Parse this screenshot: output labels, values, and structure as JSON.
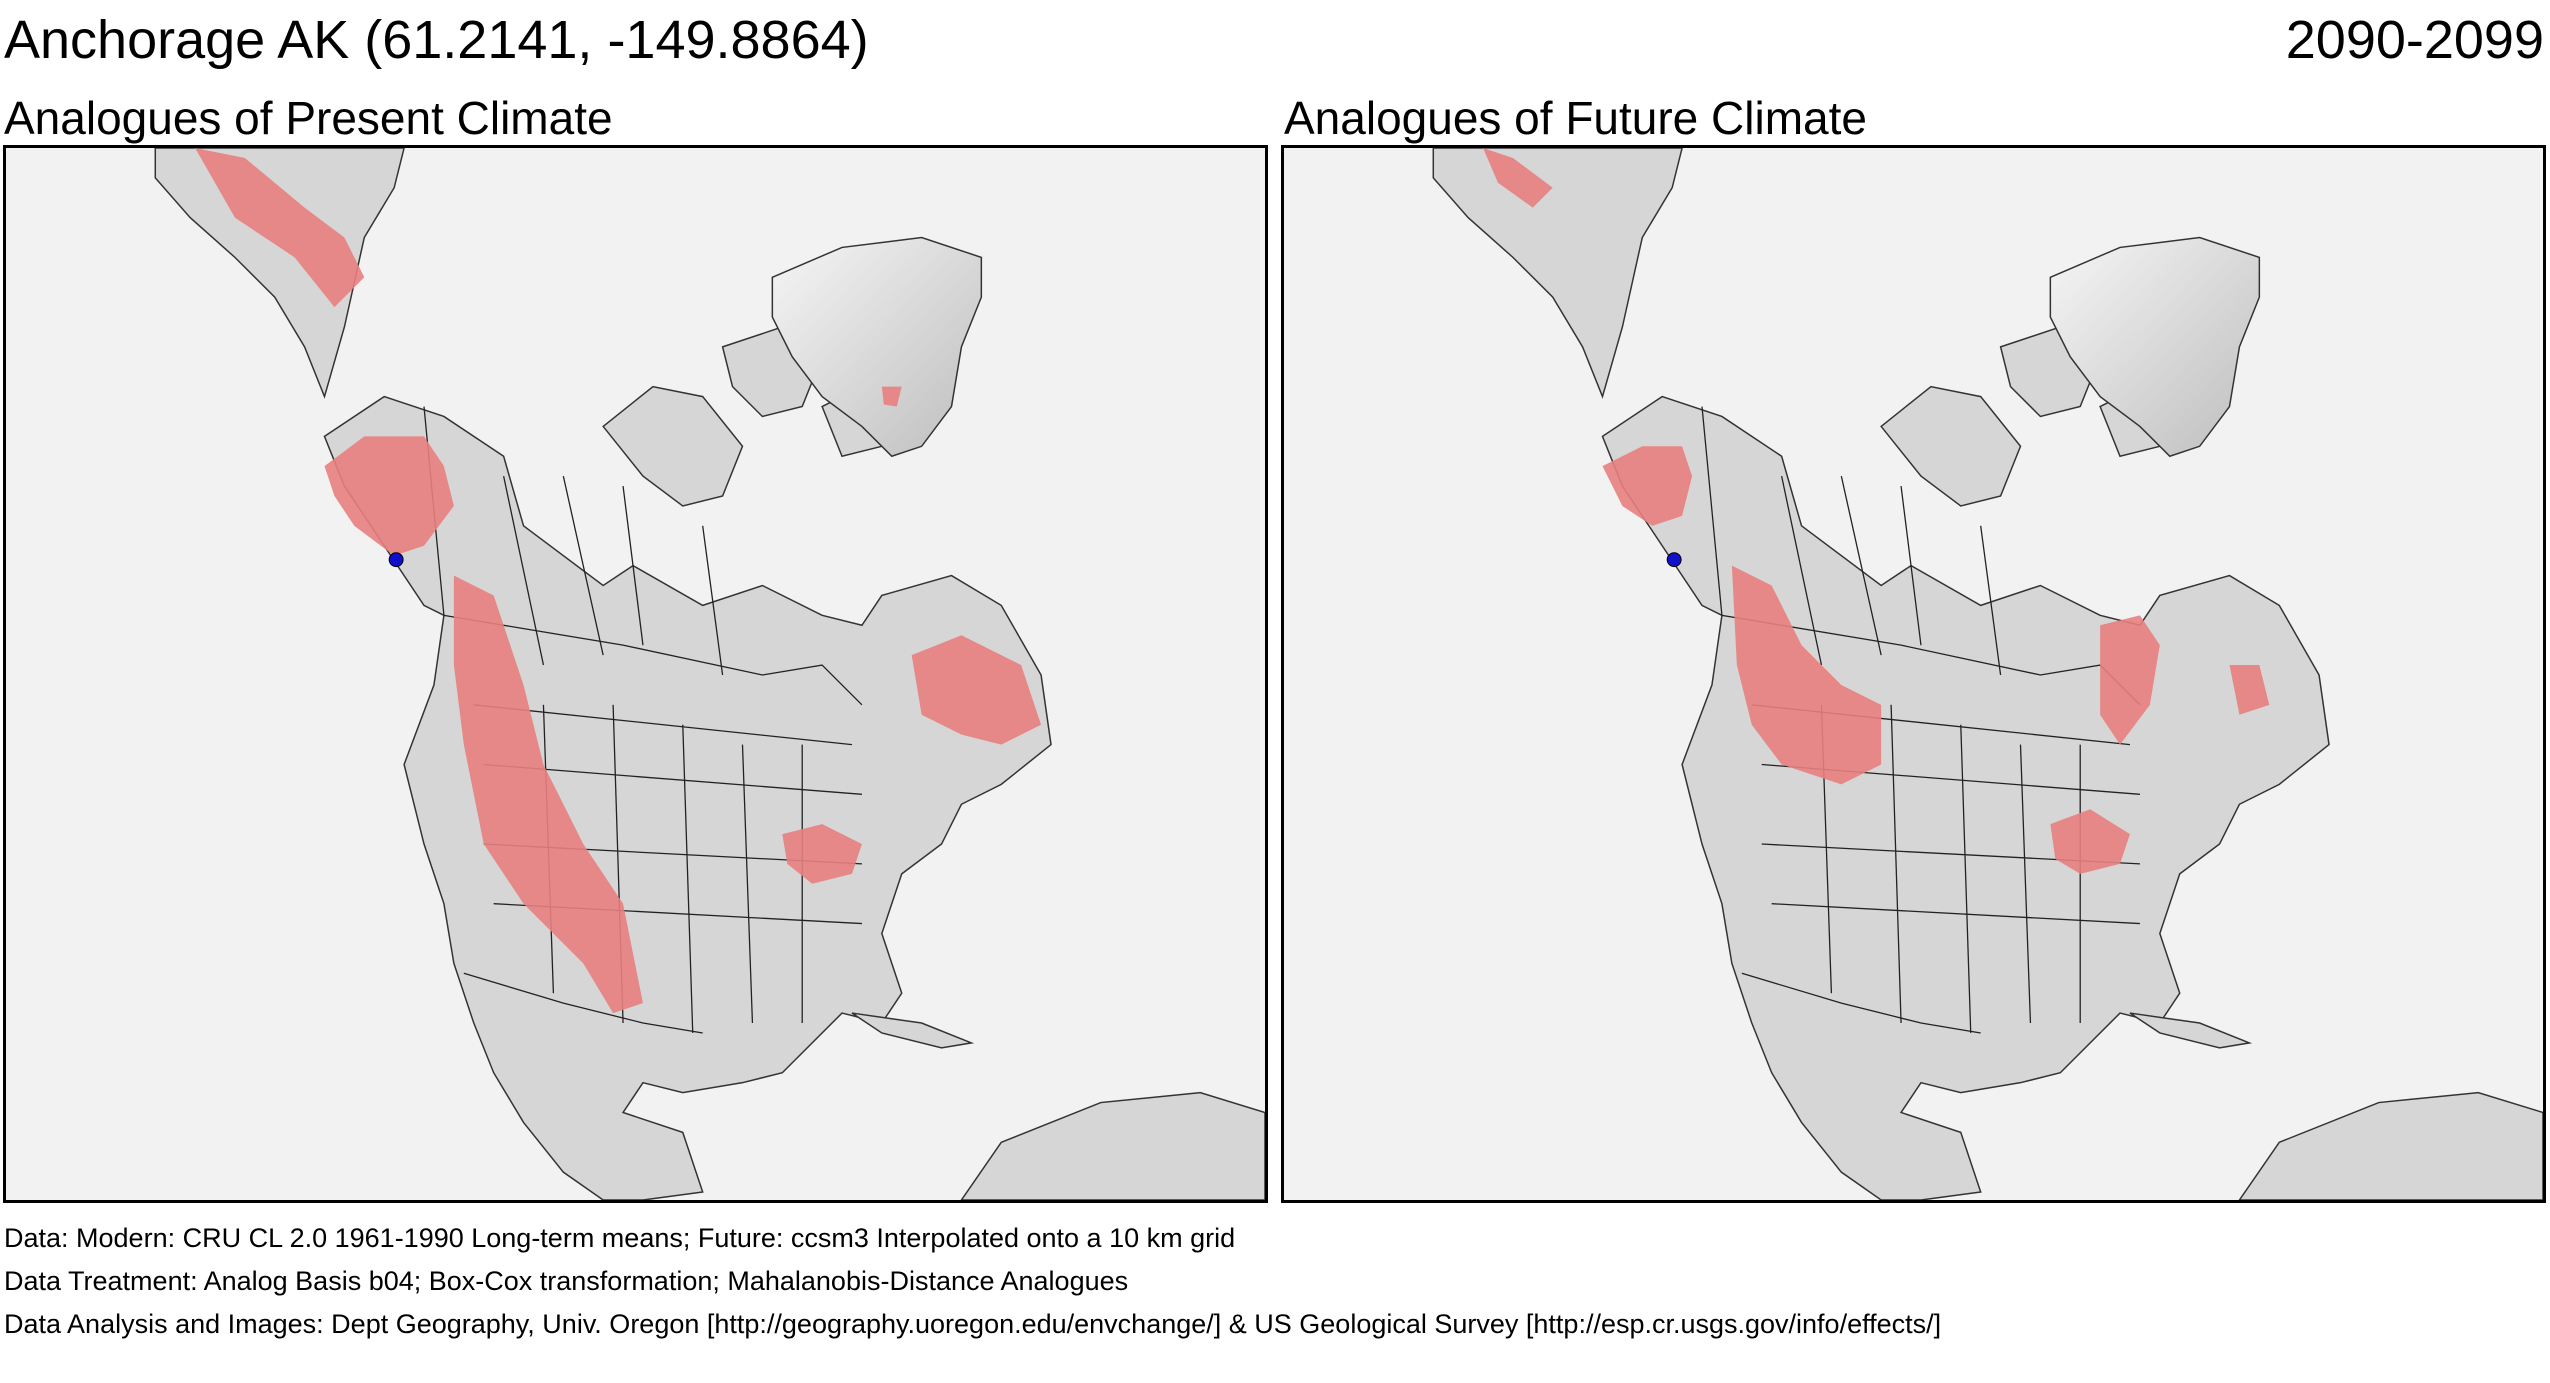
{
  "header": {
    "location_title": "Anchorage AK  (61.2141, -149.8864)",
    "period": "2090-2099"
  },
  "panels": [
    {
      "id": "present",
      "title": "Analogues of Present Climate"
    },
    {
      "id": "future",
      "title": "Analogues of Future Climate"
    }
  ],
  "colors": {
    "land": "#d6d6d6",
    "ocean": "#f2f2f2",
    "analogue": "#e88080",
    "boundary": "#222222",
    "site_marker": "#1010cc"
  },
  "site_marker": {
    "name": "Anchorage AK",
    "lat": 61.2141,
    "lon": -149.8864
  },
  "footer": {
    "data": "Data:  Modern: CRU CL 2.0 1961-1990 Long-term means; Future: ccsm3 Interpolated onto a 10 km grid",
    "treatment": "Data Treatment:  Analog Basis b04; Box-Cox transformation; Mahalanobis-Distance Analogues",
    "analysis": "Data Analysis and Images:  Dept Geography, Univ. Oregon [http://geography.uoregon.edu/envchange/] & US Geological Survey [http://esp.cr.usgs.gov/info/effects/]"
  }
}
